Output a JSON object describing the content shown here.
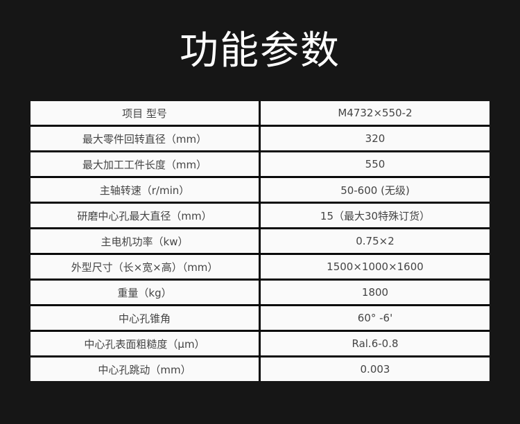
{
  "title": "功能参数",
  "rows": [
    {
      "label": "项目 型号",
      "value": "M4732×550-2"
    },
    {
      "label": "最大零件回转直径（mm）",
      "value": "320"
    },
    {
      "label": "最大加工工件长度（mm）",
      "value": "550"
    },
    {
      "label": "主轴转速（r/min）",
      "value": "50-600 (无级)"
    },
    {
      "label": "研磨中心孔最大直径（mm）",
      "value": "15（最大30特殊订货）"
    },
    {
      "label": "主电机功率（kw）",
      "value": "0.75×2"
    },
    {
      "label": "外型尺寸（长×宽×高）（mm）",
      "value": "1500×1000×1600"
    },
    {
      "label": "重量（kg）",
      "value": "1800"
    },
    {
      "label": "中心孔锥角",
      "value": "60° -6'"
    },
    {
      "label": "中心孔表面粗糙度（μm）",
      "value": "Ral.6-0.8"
    },
    {
      "label": "中心孔跳动（mm）",
      "value": "0.003"
    }
  ]
}
